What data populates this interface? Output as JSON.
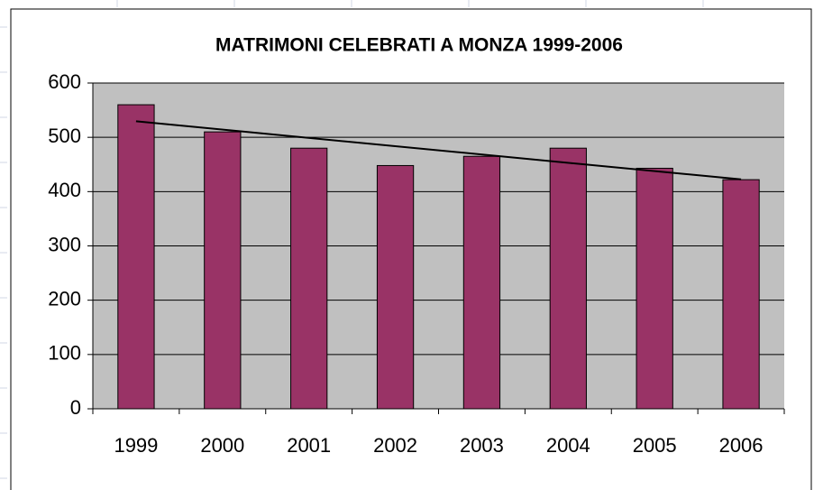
{
  "chart_data": {
    "type": "bar",
    "title": "MATRIMONI CELEBRATI A MONZA 1999-2006",
    "categories": [
      "1999",
      "2000",
      "2001",
      "2002",
      "2003",
      "2004",
      "2005",
      "2006"
    ],
    "values": [
      560,
      510,
      480,
      448,
      465,
      480,
      443,
      422
    ],
    "color": "#993366",
    "trendline": "linear",
    "ylim": [
      0,
      600
    ],
    "yticks": [
      0,
      100,
      200,
      300,
      400,
      500,
      600
    ],
    "grid": true
  }
}
